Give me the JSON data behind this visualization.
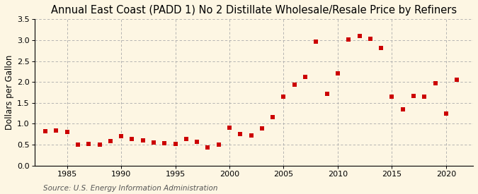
{
  "title": "Annual East Coast (PADD 1) No 2 Distillate Wholesale/Resale Price by Refiners",
  "ylabel": "Dollars per Gallon",
  "source": "Source: U.S. Energy Information Administration",
  "background_color": "#fdf6e3",
  "years": [
    1983,
    1984,
    1985,
    1986,
    1987,
    1988,
    1989,
    1990,
    1991,
    1992,
    1993,
    1994,
    1995,
    1996,
    1997,
    1998,
    1999,
    2000,
    2001,
    2002,
    2003,
    2004,
    2005,
    2006,
    2007,
    2008,
    2009,
    2010,
    2011,
    2012,
    2013,
    2014,
    2015,
    2016,
    2017,
    2018,
    2019,
    2020,
    2021
  ],
  "values": [
    0.82,
    0.84,
    0.8,
    0.5,
    0.52,
    0.5,
    0.58,
    0.7,
    0.63,
    0.6,
    0.55,
    0.53,
    0.51,
    0.63,
    0.57,
    0.43,
    0.5,
    0.91,
    0.76,
    0.72,
    0.89,
    1.15,
    1.65,
    1.93,
    2.12,
    2.97,
    1.72,
    2.2,
    3.02,
    3.1,
    3.03,
    2.82,
    1.65,
    1.35,
    1.67,
    1.65,
    1.97,
    1.25,
    2.05
  ],
  "marker_color": "#cc0000",
  "marker_size": 4,
  "xlim": [
    1982,
    2022.5
  ],
  "ylim": [
    0.0,
    3.5
  ],
  "yticks": [
    0.0,
    0.5,
    1.0,
    1.5,
    2.0,
    2.5,
    3.0,
    3.5
  ],
  "xticks": [
    1985,
    1990,
    1995,
    2000,
    2005,
    2010,
    2015,
    2020
  ],
  "grid_color": "#aaaaaa",
  "title_fontsize": 10.5,
  "axis_fontsize": 8.5,
  "tick_fontsize": 8,
  "source_fontsize": 7.5
}
